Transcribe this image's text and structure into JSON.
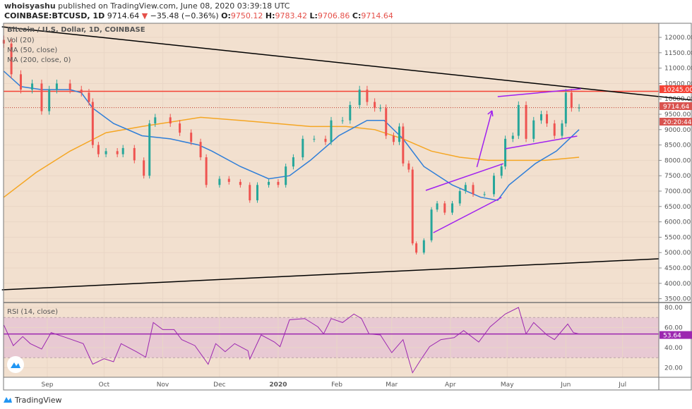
{
  "header": {
    "author": "whoisyashu",
    "published": "published on TradingView.com, June 08, 2020 03:39:18 UTC",
    "symbol": "COINBASE:BTCUSD, 1D",
    "last": "9714.64",
    "change": "−35.48 (−0.36%)",
    "o_label": "O:",
    "o": "9750.12",
    "h_label": "H:",
    "h": "9783.42",
    "l_label": "L:",
    "l": "9706.86",
    "c_label": "C:",
    "c": "9714.64"
  },
  "legend": {
    "title": "Bitcoin / U.S. Dollar, 1D, COINBASE",
    "vol": "Vol (20)",
    "ma50": "MA (50, close)",
    "ma200": "MA (200, close, 0)",
    "rsi": "RSI (14, close)"
  },
  "footer": {
    "brand": "TradingView"
  },
  "colors": {
    "up": "#26a69a",
    "down": "#ef5350",
    "ma50": "#2f7ed8",
    "ma200": "#f5a623",
    "rsi": "#9c27b0",
    "resistance": "#f44336",
    "trend": "#000000",
    "drawing": "#a020f0",
    "background": "#f2e0cf"
  },
  "chart_data": {
    "type": "candlestick",
    "y_ticks": [
      "12000.00",
      "11500.00",
      "11000.00",
      "10500.00",
      "10000.00",
      "9500.00",
      "9000.00",
      "8500.00",
      "8000.00",
      "7500.00",
      "7000.00",
      "6500.00",
      "6000.00",
      "5500.00",
      "5000.00",
      "4500.00",
      "4000.00",
      "3500.00"
    ],
    "ylim": [
      3500,
      12000
    ],
    "x_ticks": [
      "Sep",
      "Oct",
      "Nov",
      "Dec",
      "2020",
      "Feb",
      "Mar",
      "Apr",
      "May",
      "Jun",
      "Jul"
    ],
    "last_price_label": "9714.64",
    "countdown_label": "20:20:44",
    "resistance_label": "10245.00",
    "resistance": 10245,
    "closes": [
      [
        "2019-08-09",
        11800
      ],
      [
        "2019-08-13",
        10800
      ],
      [
        "2019-08-18",
        10300
      ],
      [
        "2019-08-24",
        10500
      ],
      [
        "2019-08-29",
        9600
      ],
      [
        "2019-09-02",
        10300
      ],
      [
        "2019-09-06",
        10500
      ],
      [
        "2019-09-13",
        10300
      ],
      [
        "2019-09-19",
        10200
      ],
      [
        "2019-09-23",
        9900
      ],
      [
        "2019-09-25",
        8500
      ],
      [
        "2019-09-28",
        8200
      ],
      [
        "2019-10-02",
        8300
      ],
      [
        "2019-10-08",
        8200
      ],
      [
        "2019-10-11",
        8400
      ],
      [
        "2019-10-17",
        8000
      ],
      [
        "2019-10-22",
        7500
      ],
      [
        "2019-10-25",
        9200
      ],
      [
        "2019-10-28",
        9400
      ],
      [
        "2019-11-05",
        9200
      ],
      [
        "2019-11-10",
        8900
      ],
      [
        "2019-11-16",
        8600
      ],
      [
        "2019-11-21",
        8100
      ],
      [
        "2019-11-24",
        7200
      ],
      [
        "2019-12-01",
        7400
      ],
      [
        "2019-12-06",
        7300
      ],
      [
        "2019-12-12",
        7200
      ],
      [
        "2019-12-17",
        6700
      ],
      [
        "2019-12-21",
        7200
      ],
      [
        "2019-12-27",
        7300
      ],
      [
        "2020-01-01",
        7200
      ],
      [
        "2020-01-05",
        7800
      ],
      [
        "2020-01-09",
        8100
      ],
      [
        "2020-01-14",
        8700
      ],
      [
        "2020-01-20",
        8700
      ],
      [
        "2020-01-26",
        8600
      ],
      [
        "2020-01-29",
        9300
      ],
      [
        "2020-02-04",
        9300
      ],
      [
        "2020-02-08",
        9800
      ],
      [
        "2020-02-13",
        10300
      ],
      [
        "2020-02-17",
        9900
      ],
      [
        "2020-02-21",
        9700
      ],
      [
        "2020-02-24",
        9700
      ],
      [
        "2020-02-27",
        8800
      ],
      [
        "2020-03-02",
        8600
      ],
      [
        "2020-03-05",
        9100
      ],
      [
        "2020-03-07",
        7900
      ],
      [
        "2020-03-10",
        7700
      ],
      [
        "2020-03-12",
        5300
      ],
      [
        "2020-03-14",
        5000
      ],
      [
        "2020-03-18",
        5400
      ],
      [
        "2020-03-22",
        6400
      ],
      [
        "2020-03-25",
        6600
      ],
      [
        "2020-03-29",
        6300
      ],
      [
        "2020-04-02",
        6600
      ],
      [
        "2020-04-06",
        7000
      ],
      [
        "2020-04-09",
        7200
      ],
      [
        "2020-04-13",
        6900
      ],
      [
        "2020-04-19",
        6900
      ],
      [
        "2020-04-24",
        7500
      ],
      [
        "2020-04-28",
        7800
      ],
      [
        "2020-04-30",
        8700
      ],
      [
        "2020-05-04",
        8800
      ],
      [
        "2020-05-07",
        9800
      ],
      [
        "2020-05-11",
        8700
      ],
      [
        "2020-05-15",
        9300
      ],
      [
        "2020-05-19",
        9500
      ],
      [
        "2020-05-22",
        9200
      ],
      [
        "2020-05-26",
        8800
      ],
      [
        "2020-05-30",
        9200
      ],
      [
        "2020-06-01",
        10200
      ],
      [
        "2020-06-04",
        9700
      ],
      [
        "2020-06-08",
        9714.64
      ]
    ],
    "ma50": [
      [
        "2019-08-09",
        10900
      ],
      [
        "2019-08-18",
        10400
      ],
      [
        "2019-08-29",
        10300
      ],
      [
        "2019-09-13",
        10300
      ],
      [
        "2019-09-19",
        10200
      ],
      [
        "2019-09-25",
        9700
      ],
      [
        "2019-10-06",
        9200
      ],
      [
        "2019-10-21",
        8800
      ],
      [
        "2019-11-05",
        8700
      ],
      [
        "2019-11-20",
        8500
      ],
      [
        "2019-11-27",
        8300
      ],
      [
        "2019-12-12",
        7800
      ],
      [
        "2019-12-27",
        7400
      ],
      [
        "2020-01-07",
        7500
      ],
      [
        "2020-01-18",
        8000
      ],
      [
        "2020-02-02",
        8800
      ],
      [
        "2020-02-17",
        9300
      ],
      [
        "2020-02-26",
        9300
      ],
      [
        "2020-03-07",
        8700
      ],
      [
        "2020-03-18",
        7800
      ],
      [
        "2020-04-02",
        7200
      ],
      [
        "2020-04-17",
        6800
      ],
      [
        "2020-04-26",
        6700
      ],
      [
        "2020-05-02",
        7200
      ],
      [
        "2020-05-16",
        7900
      ],
      [
        "2020-05-27",
        8300
      ],
      [
        "2020-06-08",
        9000
      ]
    ],
    "ma200": [
      [
        "2019-08-09",
        6800
      ],
      [
        "2019-08-26",
        7600
      ],
      [
        "2019-09-13",
        8300
      ],
      [
        "2019-10-02",
        8900
      ],
      [
        "2019-10-21",
        9100
      ],
      [
        "2019-11-21",
        9400
      ],
      [
        "2019-12-12",
        9300
      ],
      [
        "2019-12-31",
        9200
      ],
      [
        "2020-01-18",
        9100
      ],
      [
        "2020-02-06",
        9100
      ],
      [
        "2020-02-21",
        9000
      ],
      [
        "2020-03-07",
        8700
      ],
      [
        "2020-03-22",
        8300
      ],
      [
        "2020-04-06",
        8100
      ],
      [
        "2020-04-21",
        8000
      ],
      [
        "2020-05-06",
        8000
      ],
      [
        "2020-05-21",
        8000
      ],
      [
        "2020-06-08",
        8100
      ]
    ],
    "trendlines": [
      {
        "kind": "descending",
        "from": [
          "2019-08-08",
          12344
        ],
        "to": [
          "2020-08-07",
          9959
        ]
      },
      {
        "kind": "ascending",
        "from": [
          "2019-08-08",
          3789
        ],
        "to": [
          "2020-07-20",
          4798
        ]
      }
    ],
    "drawings": [
      {
        "kind": "channel-lower",
        "from": [
          "2020-03-23",
          5647
        ],
        "to": [
          "2020-04-28",
          6794
        ]
      },
      {
        "kind": "channel-upper",
        "from": [
          "2020-03-19",
          7023
        ],
        "to": [
          "2020-04-29",
          7894
        ]
      },
      {
        "kind": "arrow",
        "from": [
          "2020-04-15",
          7780
        ],
        "to": [
          "2020-04-23",
          9615
        ]
      },
      {
        "kind": "wedge-upper",
        "from": [
          "2020-04-26",
          10073
        ],
        "to": [
          "2020-06-09",
          10326
        ]
      },
      {
        "kind": "wedge-lower",
        "from": [
          "2020-04-30",
          8376
        ],
        "to": [
          "2020-06-07",
          8789
        ]
      }
    ],
    "rsi": {
      "y_ticks": [
        "80.00",
        "60.00",
        "40.00",
        "20.00"
      ],
      "bands": [
        30,
        70
      ],
      "last_label": "53.64",
      "last": 53.64,
      "values": [
        [
          "2019-08-09",
          62.5
        ],
        [
          "2019-08-14",
          42
        ],
        [
          "2019-08-19",
          51
        ],
        [
          "2019-08-23",
          44
        ],
        [
          "2019-08-29",
          38.6
        ],
        [
          "2019-09-03",
          55
        ],
        [
          "2019-09-11",
          50
        ],
        [
          "2019-09-20",
          44
        ],
        [
          "2019-09-25",
          23.5
        ],
        [
          "2019-10-01",
          29
        ],
        [
          "2019-10-06",
          26
        ],
        [
          "2019-10-10",
          44
        ],
        [
          "2019-10-18",
          36
        ],
        [
          "2019-10-23",
          30.5
        ],
        [
          "2019-10-27",
          65
        ],
        [
          "2019-11-01",
          58
        ],
        [
          "2019-11-07",
          58
        ],
        [
          "2019-11-11",
          48
        ],
        [
          "2019-11-18",
          42
        ],
        [
          "2019-11-25",
          23.5
        ],
        [
          "2019-11-29",
          44
        ],
        [
          "2019-12-04",
          36
        ],
        [
          "2019-12-09",
          44
        ],
        [
          "2019-12-16",
          37
        ],
        [
          "2019-12-17",
          28.6
        ],
        [
          "2019-12-23",
          52.6
        ],
        [
          "2019-12-30",
          45.6
        ],
        [
          "2020-01-02",
          41
        ],
        [
          "2020-01-07",
          67.7
        ],
        [
          "2020-01-15",
          69
        ],
        [
          "2020-01-22",
          60.7
        ],
        [
          "2020-01-25",
          53.7
        ],
        [
          "2020-01-29",
          69
        ],
        [
          "2020-02-04",
          65
        ],
        [
          "2020-02-10",
          73.5
        ],
        [
          "2020-02-14",
          69
        ],
        [
          "2020-02-18",
          53.7
        ],
        [
          "2020-02-24",
          52.6
        ],
        [
          "2020-03-01",
          35
        ],
        [
          "2020-03-07",
          48
        ],
        [
          "2020-03-12",
          15
        ],
        [
          "2020-03-16",
          27
        ],
        [
          "2020-03-21",
          41
        ],
        [
          "2020-03-27",
          48
        ],
        [
          "2020-04-03",
          50
        ],
        [
          "2020-04-08",
          57
        ],
        [
          "2020-04-16",
          45.6
        ],
        [
          "2020-04-22",
          60.7
        ],
        [
          "2020-04-30",
          73.5
        ],
        [
          "2020-05-07",
          80
        ],
        [
          "2020-05-11",
          53.7
        ],
        [
          "2020-05-15",
          65
        ],
        [
          "2020-05-22",
          52.6
        ],
        [
          "2020-05-26",
          48
        ],
        [
          "2020-06-02",
          63.5
        ],
        [
          "2020-06-05",
          55
        ],
        [
          "2020-06-08",
          53.64
        ]
      ]
    }
  }
}
